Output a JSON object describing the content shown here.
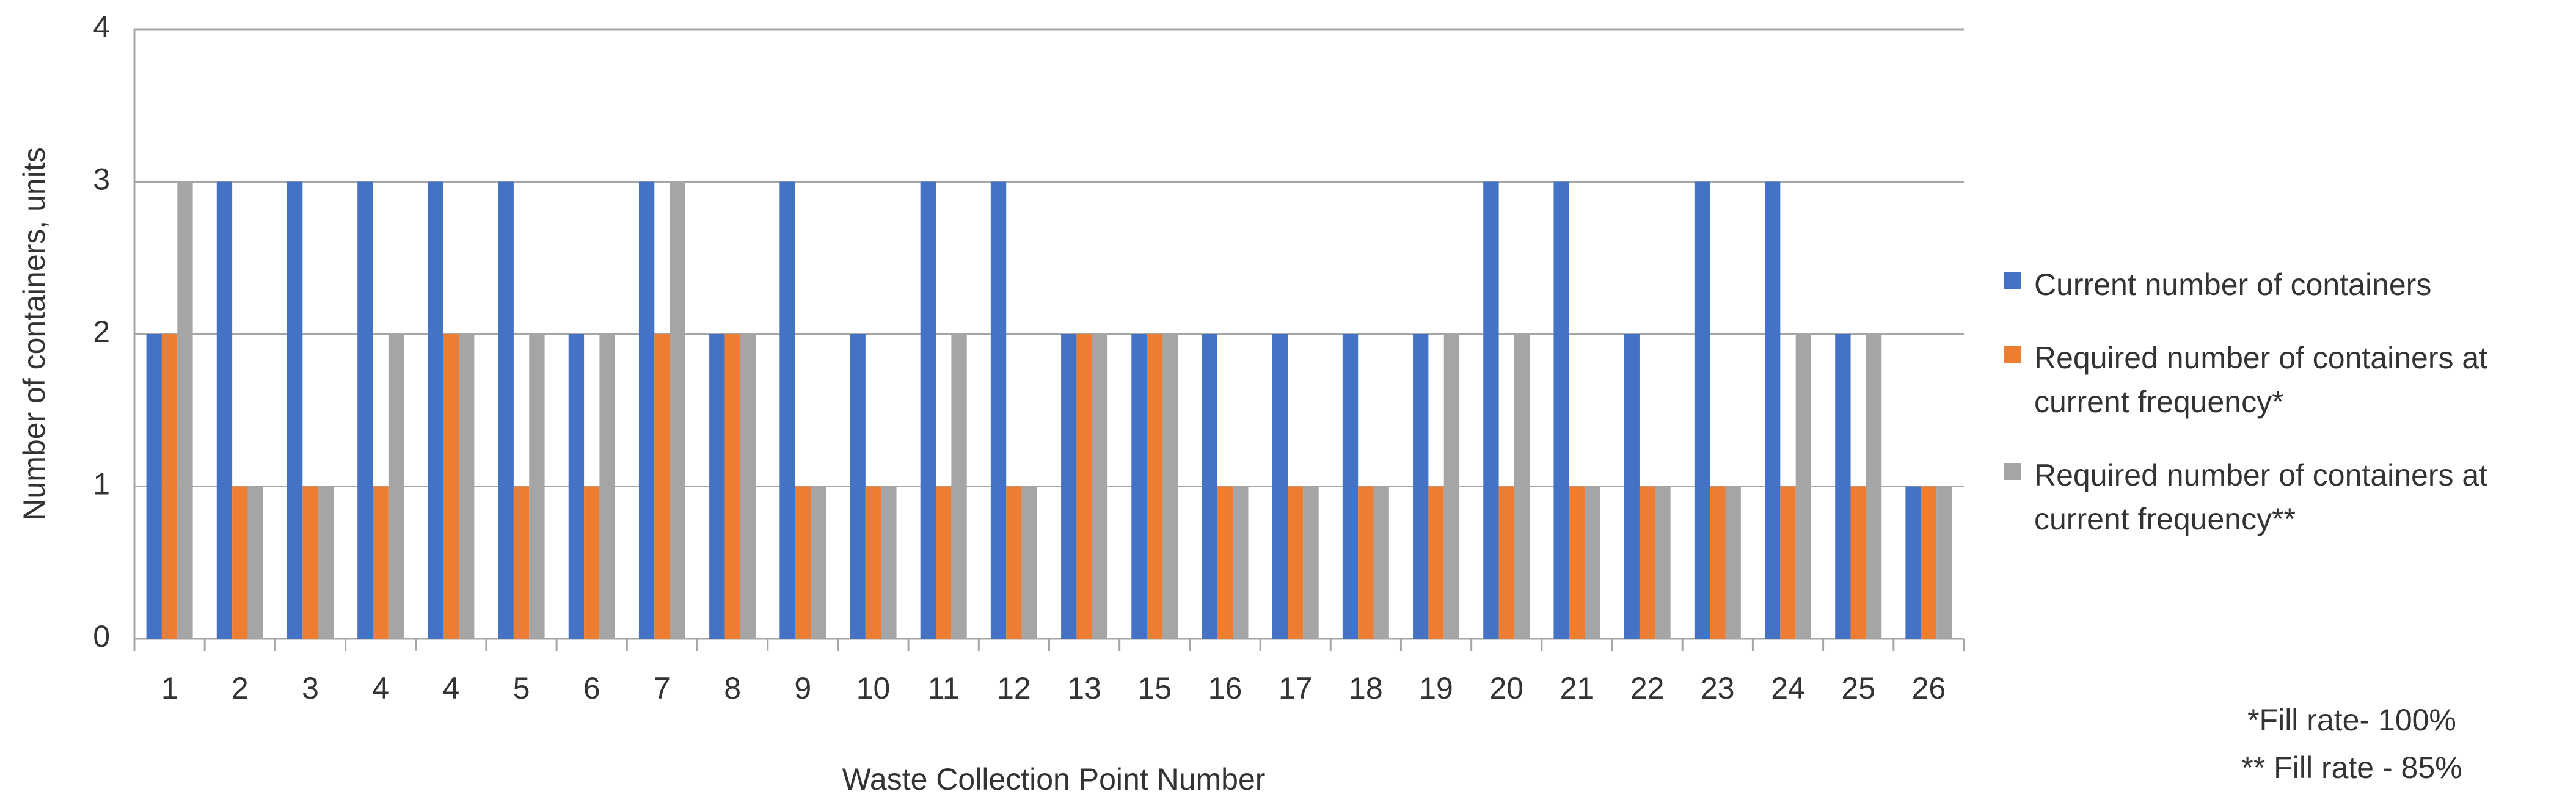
{
  "chart_data": {
    "type": "bar",
    "x_label": "Waste Collection Point Number",
    "y_label": "Number of containers, units",
    "categories": [
      "1",
      "2",
      "3",
      "4",
      "4",
      "5",
      "6",
      "7",
      "8",
      "9",
      "10",
      "11",
      "12",
      "13",
      "15",
      "16",
      "17",
      "18",
      "19",
      "20",
      "21",
      "22",
      "23",
      "24",
      "25",
      "26"
    ],
    "series": [
      {
        "name": "Current number of containers",
        "color": "#4472c4",
        "values": [
          2,
          3,
          3,
          3,
          3,
          3,
          2,
          3,
          2,
          3,
          2,
          3,
          3,
          2,
          2,
          2,
          2,
          2,
          2,
          3,
          3,
          2,
          3,
          3,
          2,
          1
        ]
      },
      {
        "name": "Required number of containers at current frequency*",
        "color": "#ed7d31",
        "values": [
          2,
          1,
          1,
          1,
          2,
          1,
          1,
          2,
          2,
          1,
          1,
          1,
          1,
          2,
          2,
          1,
          1,
          1,
          1,
          1,
          1,
          1,
          1,
          1,
          1,
          1
        ]
      },
      {
        "name": "Required number of containers at current frequency**",
        "color": "#a5a5a5",
        "values": [
          3,
          1,
          1,
          2,
          2,
          2,
          2,
          3,
          2,
          1,
          1,
          2,
          1,
          2,
          2,
          1,
          1,
          1,
          2,
          2,
          1,
          1,
          1,
          2,
          2,
          1
        ]
      }
    ],
    "ylim": [
      0,
      4
    ],
    "yticks": [
      0,
      1,
      2,
      3,
      4
    ],
    "grid": true,
    "legend": "right",
    "notes": [
      "*Fill rate- 100%",
      "** Fill rate - 85%"
    ]
  }
}
